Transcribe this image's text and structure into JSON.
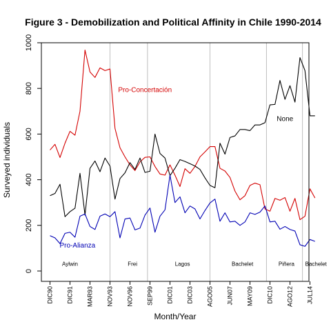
{
  "chart_data": {
    "type": "line",
    "title": "Figure 3 - Demobilization and Political Affinity in Chile 1990-2014",
    "xlabel": "Month/Year",
    "ylabel": "Surveyed individuals",
    "ylim": [
      0,
      1000
    ],
    "yticks": [
      0,
      200,
      400,
      600,
      800,
      1000
    ],
    "x_tick_labels": [
      {
        "label": "DIC90",
        "index": 0
      },
      {
        "label": "DIC91",
        "index": 4
      },
      {
        "label": "MAR93",
        "index": 8
      },
      {
        "label": "NOV93",
        "index": 12
      },
      {
        "label": "NOV96",
        "index": 16
      },
      {
        "label": "SEP99",
        "index": 20
      },
      {
        "label": "DIC01",
        "index": 24
      },
      {
        "label": "DIC03",
        "index": 28
      },
      {
        "label": "AGO05",
        "index": 32
      },
      {
        "label": "JUN07",
        "index": 36
      },
      {
        "label": "MAY09",
        "index": 40
      },
      {
        "label": "DIC10",
        "index": 44
      },
      {
        "label": "AGO12",
        "index": 48
      },
      {
        "label": "JUL14",
        "index": 52
      }
    ],
    "n_points": 54,
    "vertical_lines": [
      {
        "index": 12,
        "color": "#bebebe"
      },
      {
        "index": 19.5,
        "color": "#bebebe"
      },
      {
        "index": 32,
        "color": "#bebebe"
      },
      {
        "index": 43.3,
        "color": "#bebebe"
      },
      {
        "index": 50.5,
        "color": "#bebebe"
      }
    ],
    "series": [
      {
        "name": "Pro-Concertación",
        "color": "#d40000",
        "values": [
          530,
          555,
          497,
          560,
          612,
          595,
          700,
          968,
          872,
          848,
          890,
          878,
          885,
          625,
          540,
          500,
          465,
          440,
          478,
          498,
          500,
          458,
          425,
          420,
          465,
          420,
          370,
          448,
          428,
          458,
          500,
          522,
          545,
          545,
          450,
          438,
          410,
          350,
          312,
          330,
          375,
          385,
          378,
          272,
          262,
          318,
          310,
          322,
          262,
          318,
          225,
          240,
          360,
          320
        ]
      },
      {
        "name": "None",
        "color": "#000000",
        "values": [
          330,
          340,
          380,
          238,
          260,
          275,
          428,
          245,
          450,
          482,
          435,
          495,
          460,
          315,
          405,
          430,
          475,
          445,
          495,
          432,
          437,
          600,
          515,
          495,
          418,
          450,
          488,
          480,
          470,
          460,
          445,
          408,
          375,
          365,
          560,
          512,
          585,
          592,
          620,
          620,
          615,
          640,
          640,
          650,
          728,
          730,
          835,
          752,
          812,
          740,
          935,
          878,
          680,
          680
        ]
      },
      {
        "name": "Pro-Alianza",
        "color": "#0000b4",
        "values": [
          155,
          145,
          120,
          165,
          170,
          148,
          240,
          250,
          195,
          182,
          240,
          250,
          238,
          260,
          145,
          228,
          232,
          180,
          188,
          245,
          276,
          170,
          240,
          268,
          420,
          300,
          325,
          255,
          285,
          272,
          228,
          265,
          298,
          315,
          218,
          255,
          215,
          218,
          200,
          215,
          255,
          248,
          258,
          285,
          215,
          218,
          183,
          195,
          182,
          175,
          115,
          108,
          138,
          130
        ]
      }
    ],
    "series_labels": [
      {
        "text": "Pro-Concertación",
        "color": "#d40000",
        "at_index": 19,
        "at_value": 792
      },
      {
        "text": "None",
        "color": "#000000",
        "at_index": 47,
        "at_value": 665
      },
      {
        "text": "Pro-Alianza",
        "color": "#0000b4",
        "at_index": 5.5,
        "at_value": 110
      }
    ],
    "era_labels": [
      {
        "text": "Aylwin",
        "at_index": 4,
        "at_value": 30
      },
      {
        "text": "Frei",
        "at_index": 16.5,
        "at_value": 30
      },
      {
        "text": "Lagos",
        "at_index": 26.5,
        "at_value": 30
      },
      {
        "text": "Bachelet",
        "at_index": 38.5,
        "at_value": 30
      },
      {
        "text": "Piñera",
        "at_index": 47.3,
        "at_value": 30
      },
      {
        "text": "Bachelet",
        "at_index": 53.2,
        "at_value": 30
      }
    ]
  }
}
